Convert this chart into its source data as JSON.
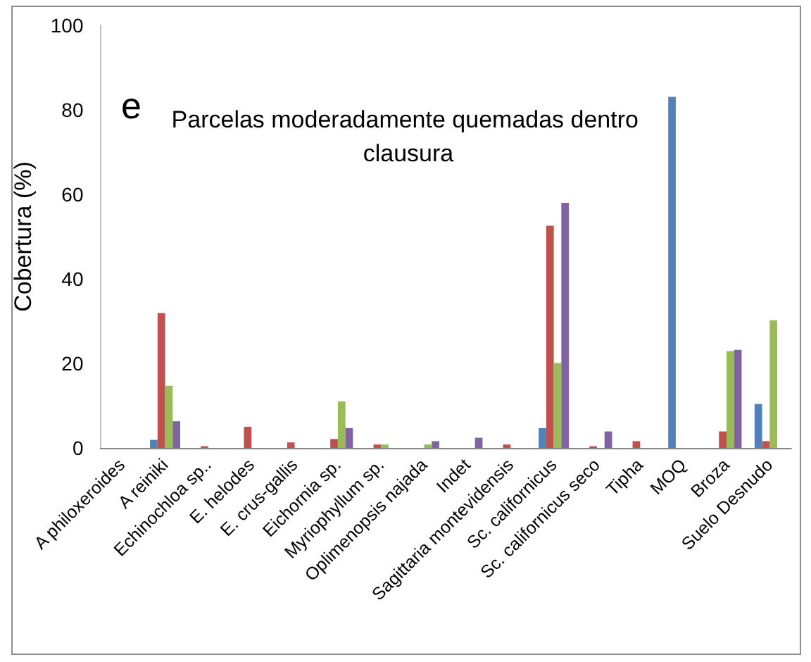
{
  "chart_data": {
    "type": "bar",
    "title": "Parcelas moderadamente quemadas dentro clausura",
    "annotations": [
      "e"
    ],
    "ylabel": "Cobertura (%)",
    "categories": [
      "A philoxeroides",
      "A reiniki",
      "Echinochloa sp..",
      "E. helodes",
      "E. crus-gallis",
      "Eichornia sp.",
      "Myriophyllum sp.",
      "Oplimenopsis najada",
      "Indet",
      "Sagittaria montevidensis",
      "Sc. californicus",
      "Sc. californicus seco",
      "Tipha",
      "MOQ",
      "Broza",
      "Suelo Desnudo"
    ],
    "series": [
      {
        "color": "#4f81bd",
        "values": [
          0,
          1.9,
          0,
          0,
          0,
          0,
          0,
          0,
          0,
          0,
          4.7,
          0,
          0,
          83.1,
          0,
          10.4
        ]
      },
      {
        "color": "#c0504d",
        "values": [
          0,
          31.9,
          0.4,
          5.0,
          1.3,
          2.1,
          0.8,
          0,
          0,
          0.8,
          52.6,
          0.4,
          1.6,
          0,
          3.9,
          1.6
        ]
      },
      {
        "color": "#9bbb59",
        "values": [
          0,
          14.7,
          0,
          0,
          0,
          11.0,
          0.8,
          0.8,
          0,
          0,
          20.1,
          0,
          0,
          0,
          22.9,
          30.2
        ]
      },
      {
        "color": "#8064a2",
        "values": [
          0,
          6.3,
          0,
          0,
          0,
          4.7,
          0,
          1.6,
          2.4,
          0,
          58.0,
          3.9,
          0,
          0,
          23.2,
          0
        ]
      }
    ],
    "ylim": [
      0,
      100
    ],
    "yticks": [
      0,
      20,
      40,
      60,
      80,
      100
    ],
    "grid": false
  }
}
